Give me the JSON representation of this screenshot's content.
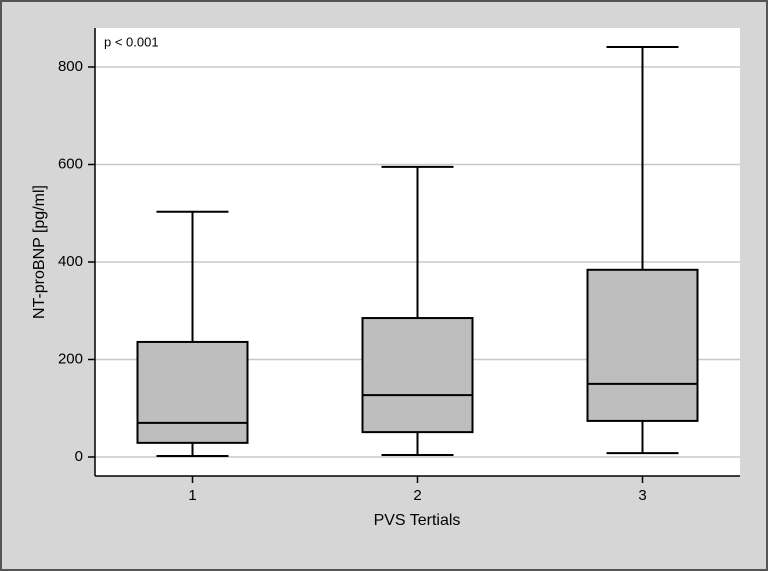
{
  "chart_data": {
    "type": "box",
    "annotation": "p < 0.001",
    "xlabel": "PVS Tertials",
    "ylabel": "NT-proBNP [pg/ml]",
    "categories": [
      "1",
      "2",
      "3"
    ],
    "min": [
      2,
      4,
      8
    ],
    "q1": [
      29,
      51,
      74
    ],
    "median": [
      70,
      127,
      150
    ],
    "q3": [
      236,
      285,
      384
    ],
    "max": [
      503,
      595,
      841
    ],
    "color": "#bebebe",
    "ylim": [
      -39,
      880
    ],
    "yticks": [
      0,
      200,
      400,
      600,
      800
    ],
    "grid": true
  }
}
